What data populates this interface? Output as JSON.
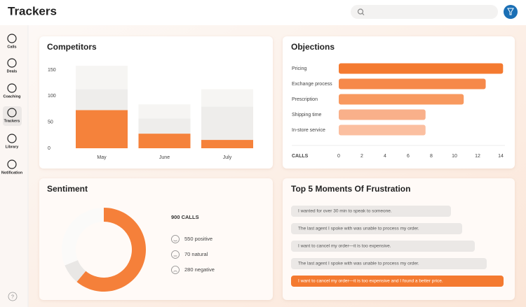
{
  "header": {
    "title": "Trackers"
  },
  "sidebar": {
    "items": [
      "Calls",
      "Deals",
      "Coaching",
      "Trackers",
      "Library",
      "Notification"
    ],
    "active": 3,
    "help": "?"
  },
  "chart_data": [
    {
      "type": "stacked-bar",
      "title": "Competitors",
      "categories": [
        "May",
        "June",
        "July"
      ],
      "series": [
        {
          "color": "#f5823b",
          "values": [
            73,
            28,
            16
          ]
        },
        {
          "color": "#eeedeb",
          "values": [
            40,
            29,
            64
          ]
        },
        {
          "color": "#f6f5f3",
          "values": [
            45,
            27,
            33
          ]
        }
      ],
      "ylim": [
        0,
        160
      ],
      "yticks": [
        0,
        50,
        100,
        150
      ]
    },
    {
      "type": "hbar",
      "title": "Objections",
      "categories": [
        "Pricing",
        "Exchange process",
        "Prescription",
        "Shipping time",
        "In-store service"
      ],
      "values": [
        14.2,
        12.7,
        10.8,
        7.5,
        7.5
      ],
      "colors": [
        "#f47a30",
        "#f6894a",
        "#f8995f",
        "#f9b08a",
        "#fbbfa0"
      ],
      "xlabel": "CALLS",
      "xlim": [
        0,
        14.5
      ],
      "xticks": [
        0,
        2,
        4,
        6,
        8,
        10,
        12,
        14
      ]
    },
    {
      "type": "donut",
      "title": "Sentiment",
      "center_label": "900 CALLS",
      "values": [
        550,
        70,
        280
      ],
      "value_labels": [
        "550 positive",
        "70 natural",
        "280 negative"
      ],
      "colors": [
        "#f5803a",
        "#e9e7e5",
        "#fbfaf9"
      ]
    }
  ],
  "frustrations": {
    "title": "Top 5 Moments Of Frustration",
    "highlighted": 4,
    "items": [
      "I wanted for over 30 min to speak to someone.",
      "The last agent I spoke with was unable to process my order.",
      "I want to cancel my order—it is too expensive.",
      "The last agent I spoke with was unable to process my order.",
      "I want to cancel my order—it is too expensive and I found a better price."
    ]
  }
}
